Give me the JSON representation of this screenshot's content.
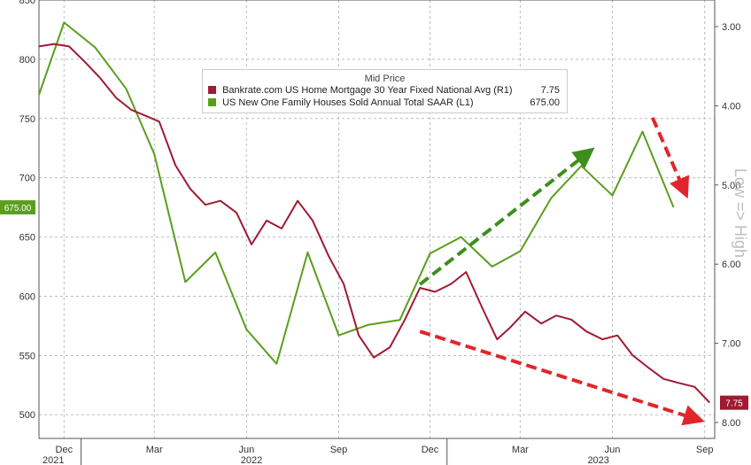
{
  "chart_data": {
    "type": "line",
    "title": "",
    "legend": {
      "title": "Mid Price",
      "placement": "top-center",
      "entries": [
        {
          "label": "Bankrate.com US Home Mortgage 30 Year Fixed National Avg (R1)",
          "value": "7.75",
          "color": "#9e1b32"
        },
        {
          "label": "US New One Family Houses Sold Annual Total SAAR (L1)",
          "value": "675.00",
          "color": "#5a9e1e"
        }
      ]
    },
    "x_axis": {
      "months": [
        "Dec",
        "Mar",
        "Jun",
        "Sep",
        "Dec",
        "Mar",
        "Jun",
        "Sep"
      ],
      "years": [
        "2021",
        "2022",
        "2023"
      ],
      "range": [
        "2021-11-20",
        "2023-09-25"
      ]
    },
    "y_left": {
      "ylim": [
        480,
        850
      ],
      "ticks": [
        "850",
        "800",
        "750",
        "700",
        "650",
        "600",
        "550",
        "500"
      ],
      "tick_values": [
        850,
        800,
        750,
        700,
        650,
        600,
        550,
        500
      ],
      "current_label": "675.00"
    },
    "y_right": {
      "ylim": [
        3.0,
        8.0
      ],
      "inverted": true,
      "ticks": [
        "3.00",
        "4.00",
        "5.00",
        "6.00",
        "7.00",
        "8.00"
      ],
      "tick_values": [
        3,
        4,
        5,
        6,
        7,
        8
      ],
      "current_label": "7.75",
      "side_label": "Low => High"
    },
    "grid": true,
    "series": [
      {
        "name": "US New One Family Houses Sold Annual Total SAAR",
        "axis": "left",
        "color": "#5a9e1e",
        "x": [
          "2021-11-20",
          "2021-12-15",
          "2022-01-15",
          "2022-02-15",
          "2022-03-15",
          "2022-04-15",
          "2022-05-15",
          "2022-06-15",
          "2022-07-15",
          "2022-08-15",
          "2022-09-15",
          "2022-10-15",
          "2022-11-15",
          "2022-12-15",
          "2023-01-15",
          "2023-02-15",
          "2023-03-15",
          "2023-04-15",
          "2023-05-15",
          "2023-06-15",
          "2023-07-15",
          "2023-08-15"
        ],
        "values": [
          770,
          831,
          810,
          775,
          720,
          612,
          637,
          572,
          543,
          637,
          567,
          576,
          580,
          636,
          650,
          625,
          638,
          683,
          710,
          685,
          739,
          675
        ]
      },
      {
        "name": "Bankrate.com US Home Mortgage 30 Year Fixed National Avg",
        "axis": "right",
        "color": "#9e1b32",
        "x": [
          "2021-11-20",
          "2021-12-05",
          "2021-12-20",
          "2022-01-05",
          "2022-01-20",
          "2022-02-05",
          "2022-02-20",
          "2022-03-05",
          "2022-03-20",
          "2022-04-05",
          "2022-04-20",
          "2022-05-05",
          "2022-05-20",
          "2022-06-05",
          "2022-06-20",
          "2022-07-05",
          "2022-07-20",
          "2022-08-05",
          "2022-08-20",
          "2022-09-05",
          "2022-09-20",
          "2022-10-05",
          "2022-10-20",
          "2022-11-05",
          "2022-11-20",
          "2022-12-05",
          "2022-12-20",
          "2023-01-05",
          "2023-01-20",
          "2023-02-05",
          "2023-02-20",
          "2023-03-05",
          "2023-03-20",
          "2023-04-05",
          "2023-04-20",
          "2023-05-05",
          "2023-05-20",
          "2023-06-05",
          "2023-06-20",
          "2023-07-05",
          "2023-07-20",
          "2023-08-05",
          "2023-08-20",
          "2023-09-05",
          "2023-09-20"
        ],
        "values": [
          3.25,
          3.22,
          3.25,
          3.45,
          3.65,
          3.9,
          4.05,
          4.12,
          4.2,
          4.75,
          5.05,
          5.25,
          5.2,
          5.35,
          5.75,
          5.45,
          5.55,
          5.2,
          5.45,
          5.9,
          6.25,
          6.9,
          7.18,
          7.05,
          6.7,
          6.3,
          6.35,
          6.25,
          6.1,
          6.55,
          6.95,
          6.8,
          6.6,
          6.75,
          6.65,
          6.7,
          6.85,
          6.95,
          6.9,
          7.15,
          7.3,
          7.45,
          7.5,
          7.55,
          7.75
        ]
      }
    ],
    "annotations": [
      {
        "type": "arrow",
        "style": "dashed",
        "color": "#3e8e1e",
        "from": [
          "2022-12-05",
          610
        ],
        "to": [
          "2023-05-20",
          720
        ],
        "axis": "left"
      },
      {
        "type": "arrow",
        "style": "dashed",
        "color": "#e0262b",
        "from": [
          "2022-12-05",
          6.85
        ],
        "to": [
          "2023-09-05",
          7.95
        ],
        "axis": "right"
      },
      {
        "type": "arrow",
        "style": "dashed",
        "color": "#e0262b",
        "from": [
          "2023-07-25",
          4.15
        ],
        "to": [
          "2023-08-25",
          5.05
        ],
        "axis": "right"
      }
    ]
  }
}
